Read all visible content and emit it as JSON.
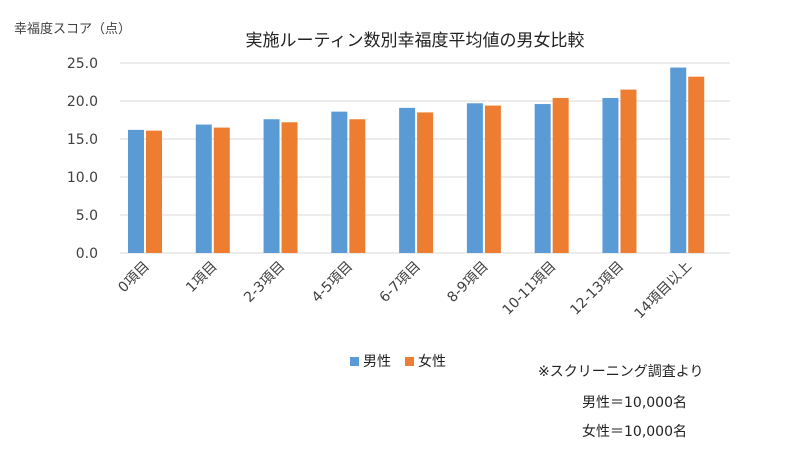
{
  "chart_data": {
    "type": "bar",
    "title": "実施ルーティン数別幸福度平均値の男女比較",
    "ylabel": "幸福度スコア（点）",
    "xlabel": "",
    "ylim": [
      0,
      25
    ],
    "yticks": [
      0,
      5,
      10,
      15,
      20,
      25
    ],
    "ytick_labels": [
      "0.0",
      "5.0",
      "10.0",
      "15.0",
      "20.0",
      "25.0"
    ],
    "grid": true,
    "legend_position": "bottom",
    "categories": [
      "0項目",
      "1項目",
      "2-3項目",
      "4-5項目",
      "6-7項目",
      "8-9項目",
      "10-11項目",
      "12-13項目",
      "14項目以上"
    ],
    "series": [
      {
        "name": "男性",
        "color": "#5b9bd5",
        "values": [
          16.2,
          16.9,
          17.6,
          18.6,
          19.1,
          19.7,
          19.6,
          20.4,
          24.4
        ]
      },
      {
        "name": "女性",
        "color": "#ed7d31",
        "values": [
          16.1,
          16.5,
          17.2,
          17.6,
          18.5,
          19.4,
          20.4,
          21.5,
          23.2
        ]
      }
    ]
  },
  "notes": {
    "source": "※スクリーニング調査より",
    "male_n": "男性＝10,000名",
    "female_n": "女性＝10,000名"
  },
  "colors": {
    "gridline": "#d9d9d9",
    "text": "#404040"
  }
}
